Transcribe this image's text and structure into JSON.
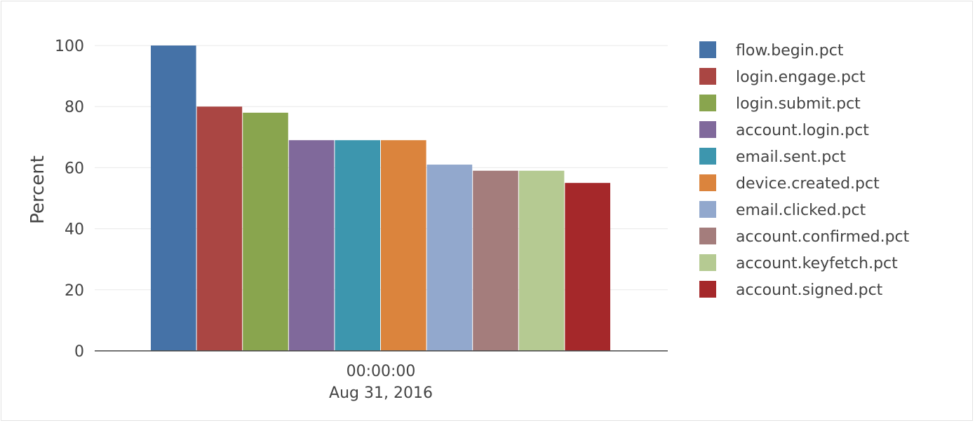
{
  "chart_data": {
    "type": "bar",
    "title": "",
    "xlabel": "",
    "ylabel": "Percent",
    "ylim": [
      0,
      100
    ],
    "yticks": [
      0,
      20,
      40,
      60,
      80,
      100
    ],
    "categories": [
      "00:00:00 Aug 31, 2016"
    ],
    "category_label_lines": [
      "00:00:00",
      "Aug 31, 2016"
    ],
    "grid": true,
    "legend_position": "right",
    "series": [
      {
        "name": "flow.begin.pct",
        "values": [
          100
        ],
        "color": "#4572a7"
      },
      {
        "name": "login.engage.pct",
        "values": [
          80
        ],
        "color": "#aa4643"
      },
      {
        "name": "login.submit.pct",
        "values": [
          78
        ],
        "color": "#89a54e"
      },
      {
        "name": "account.login.pct",
        "values": [
          69
        ],
        "color": "#80699b"
      },
      {
        "name": "email.sent.pct",
        "values": [
          69
        ],
        "color": "#3d96ae"
      },
      {
        "name": "device.created.pct",
        "values": [
          69
        ],
        "color": "#db843d"
      },
      {
        "name": "email.clicked.pct",
        "values": [
          61
        ],
        "color": "#92a8cd"
      },
      {
        "name": "account.confirmed.pct",
        "values": [
          59
        ],
        "color": "#a47d7c"
      },
      {
        "name": "account.keyfetch.pct",
        "values": [
          59
        ],
        "color": "#b5ca92"
      },
      {
        "name": "account.signed.pct",
        "values": [
          55
        ],
        "color": "#a5282a"
      }
    ]
  }
}
